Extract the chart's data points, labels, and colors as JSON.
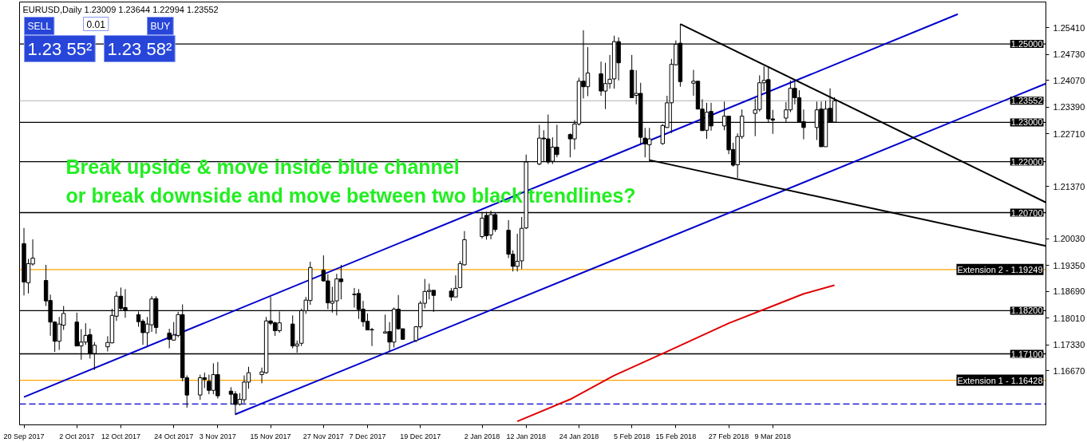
{
  "chart_data": {
    "type": "candlestick",
    "title": "EURUSD,Daily 1.23009 1.23644 1.22994 1.23552",
    "annotations": [
      "Break upside & move inside blue channel",
      "or break downside and move between two black trendlines?",
      "SELL",
      "0.01",
      "BUY",
      "1.23 55²",
      "1.23 58²"
    ],
    "x": [
      "2017-09-20",
      "2017-09-21",
      "2017-09-22",
      "2017-09-25",
      "2017-09-26",
      "2017-09-27",
      "2017-09-28",
      "2017-09-29",
      "2017-10-02",
      "2017-10-03",
      "2017-10-04",
      "2017-10-05",
      "2017-10-06",
      "2017-10-09",
      "2017-10-10",
      "2017-10-11",
      "2017-10-12",
      "2017-10-13",
      "2017-10-16",
      "2017-10-17",
      "2017-10-18",
      "2017-10-19",
      "2017-10-20",
      "2017-10-23",
      "2017-10-24",
      "2017-10-25",
      "2017-10-26",
      "2017-10-27",
      "2017-10-30",
      "2017-10-31",
      "2017-11-01",
      "2017-11-02",
      "2017-11-03",
      "2017-11-06",
      "2017-11-07",
      "2017-11-08",
      "2017-11-09",
      "2017-11-10",
      "2017-11-13",
      "2017-11-14",
      "2017-11-15",
      "2017-11-16",
      "2017-11-17",
      "2017-11-20",
      "2017-11-21",
      "2017-11-22",
      "2017-11-23",
      "2017-11-24",
      "2017-11-27",
      "2017-11-28",
      "2017-11-29",
      "2017-11-30",
      "2017-12-01",
      "2017-12-04",
      "2017-12-05",
      "2017-12-06",
      "2017-12-07",
      "2017-12-08",
      "2017-12-11",
      "2017-12-12",
      "2017-12-13",
      "2017-12-14",
      "2017-12-15",
      "2017-12-18",
      "2017-12-19",
      "2017-12-20",
      "2017-12-21",
      "2017-12-22",
      "2017-12-26",
      "2017-12-27",
      "2017-12-28",
      "2017-12-29",
      "2018-01-02",
      "2018-01-03",
      "2018-01-04",
      "2018-01-05",
      "2018-01-08",
      "2018-01-09",
      "2018-01-10",
      "2018-01-11",
      "2018-01-12",
      "2018-01-15",
      "2018-01-16",
      "2018-01-17",
      "2018-01-18",
      "2018-01-19",
      "2018-01-22",
      "2018-01-23",
      "2018-01-24",
      "2018-01-25",
      "2018-01-26",
      "2018-01-29",
      "2018-01-30",
      "2018-01-31",
      "2018-02-01",
      "2018-02-02",
      "2018-02-05",
      "2018-02-06",
      "2018-02-07",
      "2018-02-08",
      "2018-02-09",
      "2018-02-12",
      "2018-02-13",
      "2018-02-14",
      "2018-02-15",
      "2018-02-16",
      "2018-02-19",
      "2018-02-20",
      "2018-02-21",
      "2018-02-22",
      "2018-02-23",
      "2018-02-26",
      "2018-02-27",
      "2018-02-28",
      "2018-03-01",
      "2018-03-02",
      "2018-03-05",
      "2018-03-06",
      "2018-03-07",
      "2018-03-08",
      "2018-03-09",
      "2018-03-12",
      "2018-03-13",
      "2018-03-14",
      "2018-03-15",
      "2018-03-16",
      "2018-03-19",
      "2018-03-20",
      "2018-03-21",
      "2018-03-22",
      "2018-03-23"
    ],
    "ohlc": [
      [
        1.1991,
        1.2031,
        1.1859,
        1.1893
      ],
      [
        1.1891,
        1.1952,
        1.1864,
        1.194
      ],
      [
        1.1939,
        1.2002,
        1.1935,
        1.1954
      ],
      [
        1.1897,
        1.1937,
        1.1832,
        1.1845
      ],
      [
        1.1846,
        1.1861,
        1.1756,
        1.1791
      ],
      [
        1.1791,
        1.1793,
        1.1715,
        1.1742
      ],
      [
        1.1742,
        1.1804,
        1.172,
        1.1786
      ],
      [
        1.1783,
        1.1832,
        1.1771,
        1.1813
      ],
      [
        1.1791,
        1.1815,
        1.173,
        1.173
      ],
      [
        1.173,
        1.1773,
        1.1695,
        1.174
      ],
      [
        1.174,
        1.1788,
        1.1733,
        1.1757
      ],
      [
        1.1759,
        1.1774,
        1.1698,
        1.1711
      ],
      [
        1.1711,
        1.174,
        1.1669,
        1.1732
      ],
      [
        1.1728,
        1.1755,
        1.1716,
        1.1739
      ],
      [
        1.1738,
        1.1825,
        1.1737,
        1.1808
      ],
      [
        1.1806,
        1.1869,
        1.1794,
        1.1857
      ],
      [
        1.1857,
        1.1879,
        1.1821,
        1.1826
      ],
      [
        1.1828,
        1.1875,
        1.1802,
        1.182
      ],
      [
        1.181,
        1.1818,
        1.1779,
        1.1792
      ],
      [
        1.1793,
        1.1798,
        1.1733,
        1.1764
      ],
      [
        1.1764,
        1.1804,
        1.173,
        1.1786
      ],
      [
        1.1784,
        1.1857,
        1.1766,
        1.185
      ],
      [
        1.1851,
        1.1857,
        1.1761,
        1.1777
      ],
      [
        1.1763,
        1.1774,
        1.1724,
        1.1747
      ],
      [
        1.1745,
        1.1791,
        1.1744,
        1.1758
      ],
      [
        1.1757,
        1.1817,
        1.1752,
        1.181
      ],
      [
        1.181,
        1.1836,
        1.164,
        1.1649
      ],
      [
        1.1649,
        1.1655,
        1.1573,
        1.1605
      ],
      [
        1.1605,
        1.1657,
        1.1593,
        1.1649
      ],
      [
        1.1649,
        1.1662,
        1.1623,
        1.1645
      ],
      [
        1.164,
        1.1657,
        1.1607,
        1.1617
      ],
      [
        1.1617,
        1.1686,
        1.1607,
        1.1657
      ],
      [
        1.1657,
        1.1689,
        1.1596,
        1.1603
      ],
      [
        1.1615,
        1.1625,
        1.1581,
        1.1607
      ],
      [
        1.1608,
        1.1615,
        1.1554,
        1.1581
      ],
      [
        1.1582,
        1.161,
        1.1578,
        1.1594
      ],
      [
        1.1593,
        1.1655,
        1.1584,
        1.1638
      ],
      [
        1.1638,
        1.1677,
        1.1621,
        1.1662
      ],
      [
        1.1657,
        1.1675,
        1.1635,
        1.1664
      ],
      [
        1.1662,
        1.1804,
        1.1659,
        1.1794
      ],
      [
        1.1794,
        1.1855,
        1.1783,
        1.1788
      ],
      [
        1.1789,
        1.1792,
        1.1756,
        1.1769
      ],
      [
        1.1769,
        1.1818,
        1.1764,
        1.1789
      ],
      [
        1.1786,
        1.1808,
        1.1724,
        1.173
      ],
      [
        1.173,
        1.1744,
        1.1713,
        1.1735
      ],
      [
        1.1737,
        1.1825,
        1.173,
        1.182
      ],
      [
        1.182,
        1.1855,
        1.1812,
        1.1847
      ],
      [
        1.1846,
        1.1945,
        1.1835,
        1.193
      ],
      [
        1.1923,
        1.1961,
        1.1894,
        1.1896
      ],
      [
        1.1896,
        1.1913,
        1.1824,
        1.184
      ],
      [
        1.1839,
        1.1881,
        1.1815,
        1.1844
      ],
      [
        1.1845,
        1.1914,
        1.1808,
        1.1901
      ],
      [
        1.1901,
        1.1937,
        1.1849,
        1.1894
      ],
      [
        1.1862,
        1.1878,
        1.1828,
        1.1861
      ],
      [
        1.1864,
        1.1875,
        1.1799,
        1.1823
      ],
      [
        1.1824,
        1.1845,
        1.1779,
        1.1792
      ],
      [
        1.1793,
        1.1813,
        1.1771,
        1.1771
      ],
      [
        1.1772,
        1.1776,
        1.173,
        1.1771
      ],
      [
        1.1763,
        1.181,
        1.1763,
        1.1766
      ],
      [
        1.1767,
        1.1791,
        1.1716,
        1.174
      ],
      [
        1.174,
        1.1828,
        1.1726,
        1.1824
      ],
      [
        1.1824,
        1.186,
        1.1771,
        1.1774
      ],
      [
        1.1774,
        1.1774,
        1.1747,
        1.1747
      ],
      [
        1.1744,
        1.1781,
        1.174,
        1.1779
      ],
      [
        1.1779,
        1.1845,
        1.1774,
        1.1839
      ],
      [
        1.1839,
        1.1901,
        1.1826,
        1.1869
      ],
      [
        1.1869,
        1.1889,
        1.1849,
        1.1872
      ],
      [
        1.1872,
        1.1872,
        1.1817,
        1.1859
      ],
      [
        1.187,
        1.1878,
        1.1845,
        1.1855
      ],
      [
        1.1855,
        1.191,
        1.1855,
        1.1877
      ],
      [
        1.1879,
        1.1947,
        1.1877,
        1.194
      ],
      [
        1.1937,
        1.2023,
        1.1935,
        1.2001
      ],
      [
        1.2009,
        1.2072,
        1.2004,
        1.2056
      ],
      [
        1.2063,
        1.2072,
        1.2001,
        1.2011
      ],
      [
        1.2013,
        1.2075,
        1.2002,
        1.2065
      ],
      [
        1.2065,
        1.207,
        1.2021,
        1.2027
      ],
      [
        1.2025,
        1.2051,
        1.1954,
        1.1964
      ],
      [
        1.1964,
        1.1974,
        1.192,
        1.1933
      ],
      [
        1.1933,
        1.2016,
        1.192,
        1.1946
      ],
      [
        1.1947,
        1.2059,
        1.1926,
        1.203
      ],
      [
        1.2031,
        1.2218,
        1.2028,
        1.2199
      ],
      [
        1.2194,
        1.2294,
        1.2191,
        1.226
      ],
      [
        1.226,
        1.228,
        1.2201,
        1.2258
      ],
      [
        1.2258,
        1.232,
        1.2194,
        1.2199
      ],
      [
        1.2201,
        1.2262,
        1.2194,
        1.2237
      ],
      [
        1.2237,
        1.2294,
        1.2211,
        1.2218
      ],
      [
        1.2269,
        1.2272,
        1.2211,
        1.2258
      ],
      [
        1.2258,
        1.2306,
        1.2231,
        1.2296
      ],
      [
        1.2296,
        1.2414,
        1.2292,
        1.2405
      ],
      [
        1.2405,
        1.2535,
        1.2361,
        1.2391
      ],
      [
        1.2391,
        1.2492,
        1.2367,
        1.2426
      ],
      [
        1.2424,
        1.2455,
        1.2368,
        1.238
      ],
      [
        1.238,
        1.2452,
        1.2334,
        1.2399
      ],
      [
        1.2399,
        1.2472,
        1.2386,
        1.241
      ],
      [
        1.2411,
        1.2521,
        1.2386,
        1.2506
      ],
      [
        1.2506,
        1.2517,
        1.2407,
        1.2452
      ],
      [
        1.2433,
        1.2472,
        1.2363,
        1.2363
      ],
      [
        1.2369,
        1.2433,
        1.2346,
        1.2374
      ],
      [
        1.2374,
        1.2401,
        1.2245,
        1.2262
      ],
      [
        1.226,
        1.2286,
        1.2211,
        1.2245
      ],
      [
        1.2243,
        1.2286,
        1.2201,
        1.2258
      ],
      [
        1.2246,
        1.2296,
        1.2243,
        1.2292
      ],
      [
        1.2287,
        1.2368,
        1.2286,
        1.235
      ],
      [
        1.235,
        1.2462,
        1.2273,
        1.2448
      ],
      [
        1.2447,
        1.2509,
        1.2445,
        1.2499
      ],
      [
        1.2502,
        1.2551,
        1.2391,
        1.2404
      ],
      [
        1.24,
        1.2434,
        1.2368,
        1.2405
      ],
      [
        1.2405,
        1.2405,
        1.2334,
        1.2334
      ],
      [
        1.2334,
        1.2359,
        1.2279,
        1.2279
      ],
      [
        1.228,
        1.235,
        1.2258,
        1.2326
      ],
      [
        1.2328,
        1.235,
        1.2279,
        1.2291
      ],
      [
        1.2291,
        1.2353,
        1.228,
        1.2316
      ],
      [
        1.2316,
        1.2316,
        1.2219,
        1.223
      ],
      [
        1.2231,
        1.2248,
        1.2187,
        1.2191
      ],
      [
        1.2192,
        1.2272,
        1.2158,
        1.2264
      ],
      [
        1.2264,
        1.2333,
        1.2258,
        1.2316
      ],
      [
        1.2323,
        1.2361,
        1.2265,
        1.2332
      ],
      [
        1.2333,
        1.242,
        1.2328,
        1.2401
      ],
      [
        1.2401,
        1.2443,
        1.238,
        1.2407
      ],
      [
        1.2409,
        1.2443,
        1.2299,
        1.2309
      ],
      [
        1.2309,
        1.2332,
        1.2271,
        1.2306
      ],
      [
        1.2311,
        1.2352,
        1.2299,
        1.2332
      ],
      [
        1.2332,
        1.2407,
        1.2326,
        1.2387
      ],
      [
        1.2387,
        1.2405,
        1.2346,
        1.2363
      ],
      [
        1.2363,
        1.2382,
        1.23,
        1.23
      ],
      [
        1.2302,
        1.2333,
        1.2257,
        1.2287
      ],
      [
        1.2287,
        1.2353,
        1.2255,
        1.2332
      ],
      [
        1.2334,
        1.2353,
        1.2238,
        1.2238
      ],
      [
        1.2238,
        1.2355,
        1.2238,
        1.2334
      ],
      [
        1.2336,
        1.2387,
        1.23,
        1.23
      ],
      [
        1.2301,
        1.2364,
        1.2299,
        1.2355
      ]
    ],
    "series": [
      {
        "type": "line",
        "color": "#e00000",
        "x": [
          "2018-01-10",
          "2018-01-22",
          "2018-02-01",
          "2018-02-13",
          "2018-02-27",
          "2018-03-09",
          "2018-03-16",
          "2018-03-23"
        ],
        "values": [
          1.1538,
          1.1594,
          1.1655,
          1.1716,
          1.1788,
          1.1832,
          1.1863,
          1.1885
        ]
      },
      {
        "type": "line",
        "color": "#0000cc",
        "x": [
          "2017-09-20",
          "2018-04-20"
        ],
        "values": [
          1.16,
          1.2576
        ]
      },
      {
        "type": "line",
        "color": "#0000cc",
        "x": [
          "2017-11-07",
          "2018-05-10"
        ],
        "values": [
          1.1556,
          1.2399
        ]
      },
      {
        "type": "line",
        "color": "#000000",
        "x": [
          "2018-02-16",
          "2018-05-10"
        ],
        "values": [
          1.2551,
          1.2096
        ]
      },
      {
        "type": "line",
        "color": "#000000",
        "x": [
          "2018-02-09",
          "2018-05-10"
        ],
        "values": [
          1.2204,
          1.1985
        ]
      }
    ],
    "xlim": [
      "2017-09-19",
      "2018-05-10"
    ],
    "xticks": [
      {
        "value": "2017-09-20",
        "label": "20 Sep 2017"
      },
      {
        "value": "2017-10-02",
        "label": "2 Oct 2017"
      },
      {
        "value": "2017-10-12",
        "label": "12 Oct 2017"
      },
      {
        "value": "2017-10-24",
        "label": "24 Oct 2017"
      },
      {
        "value": "2017-11-03",
        "label": "3 Nov 2017"
      },
      {
        "value": "2017-11-15",
        "label": "15 Nov 2017"
      },
      {
        "value": "2017-11-27",
        "label": "27 Nov 2017"
      },
      {
        "value": "2017-12-07",
        "label": "7 Dec 2017"
      },
      {
        "value": "2017-12-19",
        "label": "19 Dec 2017"
      },
      {
        "value": "2018-01-02",
        "label": "2 Jan 2018"
      },
      {
        "value": "2018-01-12",
        "label": "12 Jan 2018"
      },
      {
        "value": "2018-01-24",
        "label": "24 Jan 2018"
      },
      {
        "value": "2018-02-05",
        "label": "5 Feb 2018"
      },
      {
        "value": "2018-02-15",
        "label": "15 Feb 2018"
      },
      {
        "value": "2018-02-27",
        "label": "27 Feb 2018"
      },
      {
        "value": "2018-03-09",
        "label": "9 Mar 2018"
      }
    ],
    "ylim": [
      1.1529,
      1.2607
    ],
    "yticks": [
      {
        "value": 1.2541,
        "label": "1.25410"
      },
      {
        "value": 1.2473,
        "label": "1.24730"
      },
      {
        "value": 1.2407,
        "label": "1.24070"
      },
      {
        "value": 1.2339,
        "label": "1.23390"
      },
      {
        "value": 1.2271,
        "label": "1.22710"
      },
      {
        "value": 1.2137,
        "label": "1.21370"
      },
      {
        "value": 1.2003,
        "label": "1.20030"
      },
      {
        "value": 1.1935,
        "label": "1.19350"
      },
      {
        "value": 1.1869,
        "label": "1.18690"
      },
      {
        "value": 1.1801,
        "label": "1.18010"
      },
      {
        "value": 1.1733,
        "label": "1.17330"
      },
      {
        "value": 1.1667,
        "label": "1.16670"
      }
    ],
    "ref_lines": [
      {
        "axis": "y",
        "value": 1.25,
        "label": "1.25000",
        "color": "#000000"
      },
      {
        "axis": "y",
        "value": 1.23552,
        "label": "1.23552",
        "color": "#c0c0c0"
      },
      {
        "axis": "y",
        "value": 1.23,
        "label": "1.23000",
        "color": "#000000"
      },
      {
        "axis": "y",
        "value": 1.22,
        "label": "1.22000",
        "color": "#000000"
      },
      {
        "axis": "y",
        "value": 1.207,
        "label": "1.20700",
        "color": "#000000"
      },
      {
        "axis": "y",
        "value": 1.19249,
        "label": "Extension 2 - 1.19249",
        "color": "#ffa500"
      },
      {
        "axis": "y",
        "value": 1.182,
        "label": "1.18200",
        "color": "#000000"
      },
      {
        "axis": "y",
        "value": 1.171,
        "label": "1.17100",
        "color": "#000000"
      },
      {
        "axis": "y",
        "value": 1.16428,
        "label": "Extension 1 - 1.16428",
        "color": "#ffa500"
      },
      {
        "axis": "y",
        "value": 1.1582,
        "color": "#0000cc",
        "line_style": "dashed"
      }
    ]
  }
}
